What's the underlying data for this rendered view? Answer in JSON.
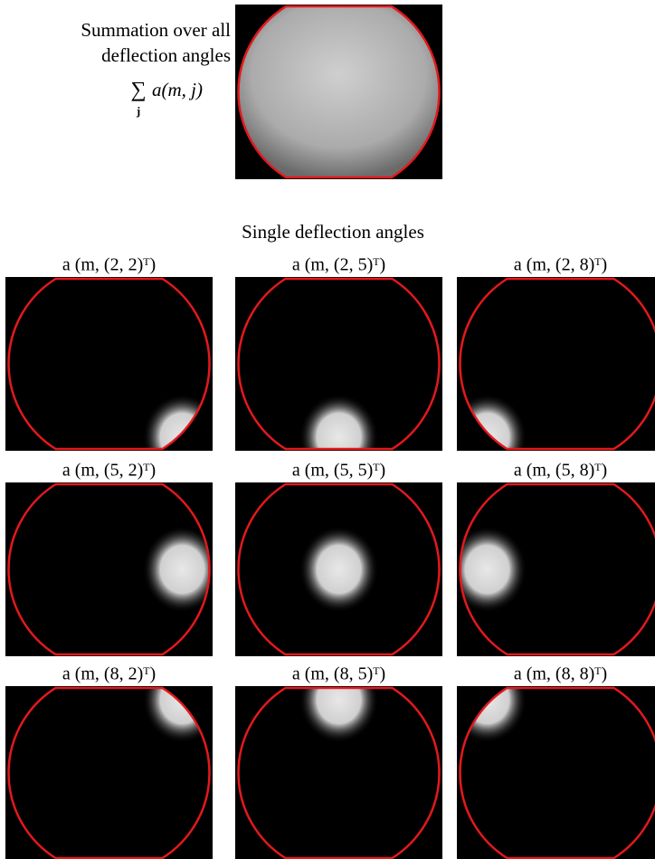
{
  "summation": {
    "caption": [
      "Summation over all",
      "deflection angles"
    ],
    "formula": {
      "operator": "∑",
      "subscript": "j",
      "term": "a(m, j)"
    }
  },
  "single": {
    "title": "Single deflection angles",
    "panels": [
      {
        "label": "a (m, (2, 2)ᵀ)"
      },
      {
        "label": "a (m, (2, 5)ᵀ)"
      },
      {
        "label": "a (m, (2, 8)ᵀ)"
      },
      {
        "label": "a (m, (5, 2)ᵀ)"
      },
      {
        "label": "a (m, (5, 5)ᵀ)"
      },
      {
        "label": "a (m, (5, 8)ᵀ)"
      },
      {
        "label": "a (m, (8, 2)ᵀ)"
      },
      {
        "label": "a (m, (8, 5)ᵀ)"
      },
      {
        "label": "a (m, (8, 8)ᵀ)"
      }
    ]
  }
}
